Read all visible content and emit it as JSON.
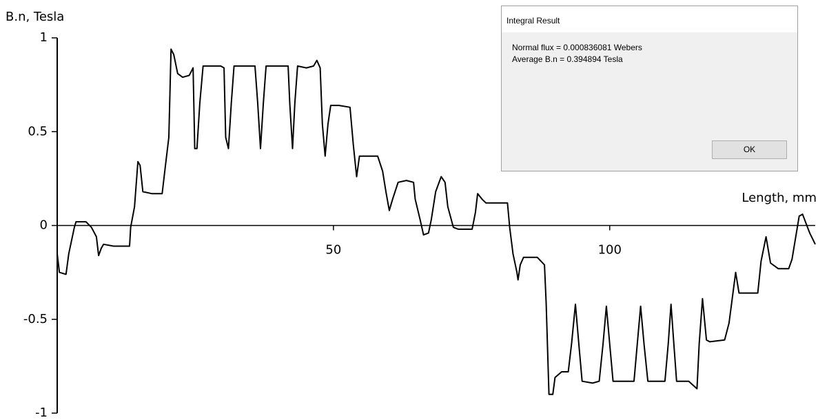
{
  "chart_data": {
    "type": "line",
    "y_label": "B.n, Tesla",
    "x_label": "Length, mm",
    "x": [
      0,
      0.4,
      1.6,
      2.1,
      3.1,
      3.4,
      5.2,
      6.2,
      7.1,
      7.5,
      8.0,
      8.4,
      10.2,
      13.1,
      13.3,
      14.0,
      14.6,
      15.0,
      15.5,
      17.1,
      19.0,
      19.6,
      20.2,
      20.6,
      21.1,
      21.8,
      22.7,
      23.9,
      24.6,
      24.9,
      25.3,
      25.8,
      26.4,
      27.7,
      29.6,
      30.2,
      30.5,
      31.0,
      31.5,
      32.0,
      33.9,
      35.8,
      36.3,
      36.8,
      37.3,
      37.8,
      39.5,
      41.8,
      42.1,
      42.6,
      43.0,
      43.5,
      45.1,
      46.4,
      47.0,
      47.6,
      48.0,
      48.5,
      49.0,
      49.5,
      51.0,
      53.0,
      53.6,
      54.2,
      54.7,
      55.5,
      58.0,
      58.9,
      59.5,
      60.1,
      60.7,
      61.7,
      63.2,
      64.5,
      64.8,
      65.7,
      66.3,
      67.2,
      67.7,
      68.5,
      69.5,
      70.2,
      70.7,
      71.7,
      72.6,
      75.1,
      75.7,
      76.1,
      76.9,
      77.6,
      79.4,
      81.5,
      81.9,
      82.5,
      83.2,
      83.4,
      83.8,
      84.4,
      86.9,
      88.2,
      88.5,
      89.0,
      89.7,
      90.1,
      91.3,
      92.5,
      93.1,
      93.8,
      94.4,
      95.0,
      96.9,
      98.1,
      98.8,
      99.4,
      100.0,
      100.6,
      102.5,
      104.4,
      105.0,
      105.6,
      106.2,
      106.9,
      108.7,
      110.0,
      110.6,
      111.1,
      111.6,
      112.1,
      114.3,
      115.8,
      116.2,
      116.8,
      117.5,
      118.1,
      120.8,
      121.6,
      122.8,
      123.4,
      124.9,
      126.8,
      127.4,
      128.3,
      129.1,
      130.5,
      132.4,
      133.0,
      134.3,
      134.9,
      135.8,
      136.2,
      137.2
    ],
    "values": [
      -0.15,
      -0.25,
      -0.26,
      -0.15,
      -0.01,
      0.02,
      0.02,
      -0.01,
      -0.06,
      -0.16,
      -0.12,
      -0.1,
      -0.11,
      -0.11,
      -0.01,
      0.1,
      0.34,
      0.32,
      0.18,
      0.17,
      0.17,
      0.32,
      0.47,
      0.94,
      0.91,
      0.81,
      0.79,
      0.8,
      0.84,
      0.41,
      0.41,
      0.65,
      0.85,
      0.85,
      0.85,
      0.84,
      0.47,
      0.41,
      0.65,
      0.85,
      0.85,
      0.85,
      0.65,
      0.41,
      0.65,
      0.85,
      0.85,
      0.85,
      0.65,
      0.41,
      0.65,
      0.85,
      0.84,
      0.85,
      0.88,
      0.84,
      0.54,
      0.37,
      0.54,
      0.64,
      0.64,
      0.63,
      0.43,
      0.26,
      0.37,
      0.37,
      0.37,
      0.29,
      0.18,
      0.08,
      0.14,
      0.23,
      0.24,
      0.23,
      0.14,
      0.03,
      -0.05,
      -0.04,
      0.03,
      0.18,
      0.26,
      0.23,
      0.1,
      -0.01,
      -0.02,
      -0.02,
      0.07,
      0.17,
      0.14,
      0.12,
      0.12,
      0.12,
      -0.01,
      -0.15,
      -0.25,
      -0.29,
      -0.21,
      -0.17,
      -0.17,
      -0.21,
      -0.41,
      -0.9,
      -0.9,
      -0.81,
      -0.78,
      -0.78,
      -0.63,
      -0.42,
      -0.63,
      -0.83,
      -0.84,
      -0.83,
      -0.63,
      -0.43,
      -0.63,
      -0.83,
      -0.83,
      -0.83,
      -0.63,
      -0.43,
      -0.63,
      -0.83,
      -0.83,
      -0.83,
      -0.63,
      -0.42,
      -0.63,
      -0.83,
      -0.83,
      -0.87,
      -0.63,
      -0.39,
      -0.61,
      -0.62,
      -0.61,
      -0.52,
      -0.25,
      -0.36,
      -0.36,
      -0.36,
      -0.19,
      -0.06,
      -0.2,
      -0.23,
      -0.23,
      -0.18,
      0.05,
      0.06,
      -0.01,
      -0.04,
      -0.1
    ],
    "color": "#000000",
    "xlim": [
      0,
      137.2
    ],
    "ylim": [
      -1,
      1
    ],
    "xticks": [
      50,
      100
    ],
    "yticks": [
      -1,
      -0.5,
      0,
      0.5,
      1
    ],
    "grid": false
  },
  "dialog": {
    "title": "Integral Result",
    "lines": [
      "Normal flux = 0.000836081 Webers",
      "Average B.n = 0.394894 Tesla"
    ],
    "button": "OK"
  }
}
